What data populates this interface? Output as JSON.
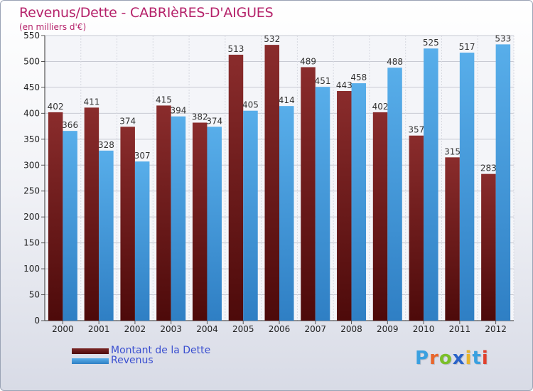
{
  "title": "Revenus/Dette - CABRIèRES-D'AIGUES",
  "subtitle": "(en milliers d'€)",
  "logo": {
    "text": "Proxiti",
    "colors": [
      "#3aa0e0",
      "#e8662c",
      "#7bbf2a",
      "#2a63c8",
      "#e8b52c",
      "#3aa0e0",
      "#e0402c"
    ]
  },
  "legend": [
    {
      "label": "Montant de la Dette",
      "color": "#6e1f1f"
    },
    {
      "label": "Revenus",
      "color": "#3d99dd"
    }
  ],
  "chart_data": {
    "type": "bar",
    "title": "Revenus/Dette - CABRIèRES-D'AIGUES",
    "ylabel": "(en milliers d'€)",
    "categories": [
      "2000",
      "2001",
      "2002",
      "2003",
      "2004",
      "2005",
      "2006",
      "2007",
      "2008",
      "2009",
      "2010",
      "2011",
      "2012"
    ],
    "series": [
      {
        "name": "Montant de la Dette",
        "color": "#6e1f1f",
        "values": [
          402,
          411,
          374,
          415,
          382,
          513,
          532,
          489,
          443,
          402,
          357,
          315,
          283
        ]
      },
      {
        "name": "Revenus",
        "color": "#3d99dd",
        "values": [
          366,
          328,
          307,
          394,
          374,
          405,
          414,
          451,
          458,
          488,
          525,
          517,
          533
        ]
      }
    ],
    "ylim": [
      0,
      550
    ],
    "yticks": [
      0,
      50,
      100,
      150,
      200,
      250,
      300,
      350,
      400,
      450,
      500,
      550
    ],
    "grid": true,
    "legend_position": "bottom-left"
  }
}
